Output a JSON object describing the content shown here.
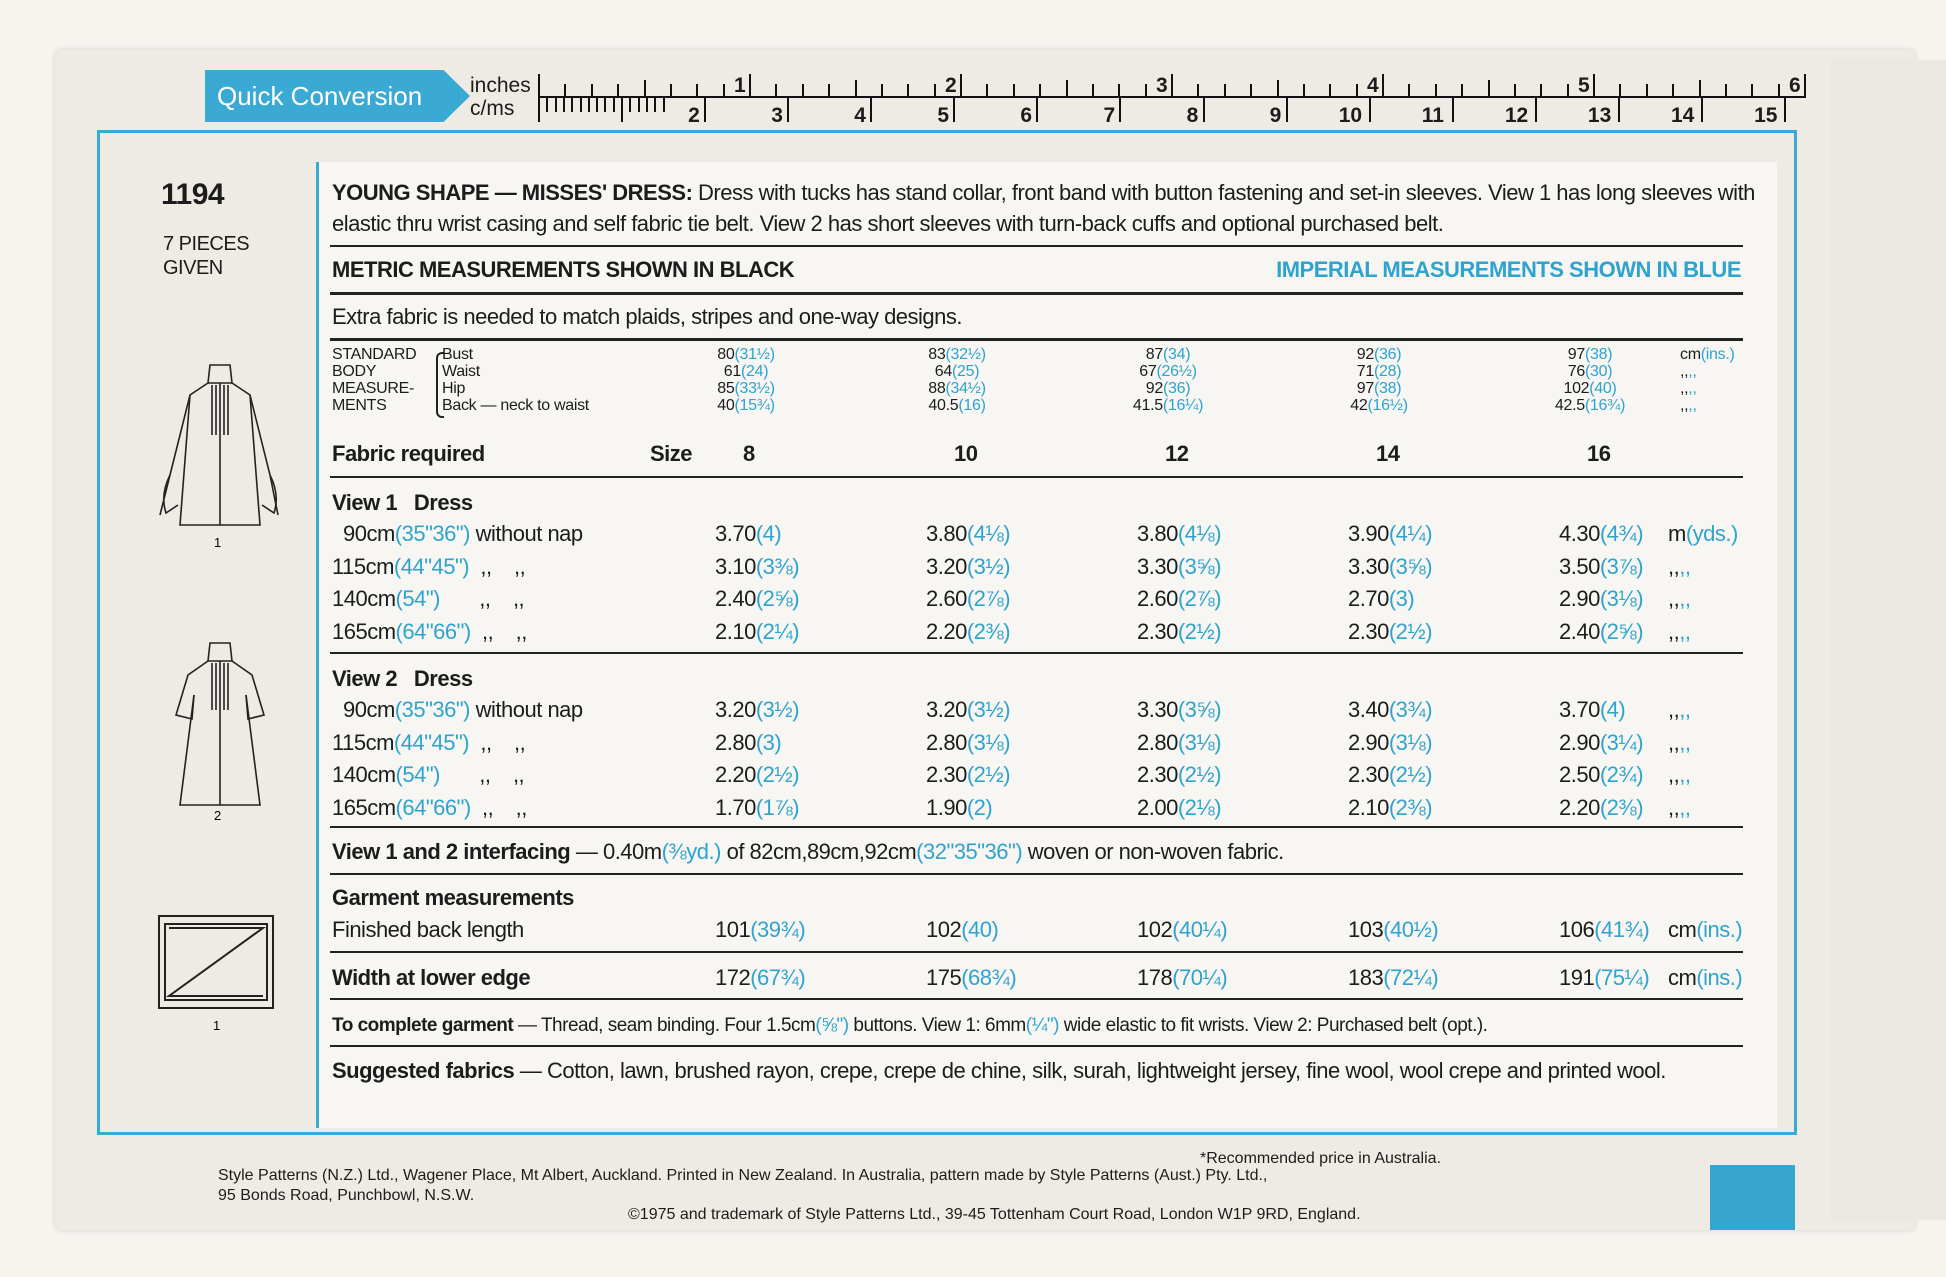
{
  "colors": {
    "accent_blue": "#3aa9d3",
    "text_blue": "#2ea3cf",
    "text_black": "#1c1c1c"
  },
  "ruler": {
    "tab_label": "Quick Conversion",
    "inches_label": "inches",
    "cm_label": "c/ms",
    "inch_marks": [
      "1",
      "2",
      "3",
      "4",
      "5",
      "6"
    ],
    "cm_marks": [
      "2",
      "3",
      "4",
      "5",
      "6",
      "7",
      "8",
      "9",
      "10",
      "11",
      "12",
      "13",
      "14",
      "15"
    ]
  },
  "left": {
    "pattern_number": "1194",
    "pieces_line1": "7 PIECES",
    "pieces_line2": "GIVEN",
    "view1_label": "1",
    "view2_label": "2",
    "piece_label": "1"
  },
  "header": {
    "title": "YOUNG SHAPE — MISSES' DRESS:",
    "description_line1": "Dress with tucks has stand collar, front band with button fastening and set-in sleeves. View 1 has long sleeves with",
    "description_line2": "elastic thru wrist casing and self fabric tie belt. View 2 has short sleeves with turn-back cuffs and optional purchased belt.",
    "metric_note": "METRIC MEASUREMENTS SHOWN IN BLACK",
    "imperial_note": "IMPERIAL MEASUREMENTS SHOWN IN BLUE",
    "extra_fabric": "Extra fabric is needed to match plaids, stripes and one-way designs."
  },
  "body_measurements": {
    "labels": [
      "STANDARD",
      "BODY",
      "MEASURE-",
      "MENTS"
    ],
    "rows": [
      {
        "name": "Bust",
        "values": [
          [
            "80",
            "(31½)"
          ],
          [
            "83",
            "(32½)"
          ],
          [
            "87",
            "(34)"
          ],
          [
            "92",
            "(36)"
          ],
          [
            "97",
            "(38)"
          ]
        ],
        "unit": [
          "cm",
          "(ins.)"
        ]
      },
      {
        "name": "Waist",
        "values": [
          [
            "61",
            "(24)"
          ],
          [
            "64",
            "(25)"
          ],
          [
            "67",
            "(26½)"
          ],
          [
            "71",
            "(28)"
          ],
          [
            "76",
            "(30)"
          ]
        ],
        "unit": [
          ",,",
          ",,"
        ]
      },
      {
        "name": "Hip",
        "values": [
          [
            "85",
            "(33½)"
          ],
          [
            "88",
            "(34½)"
          ],
          [
            "92",
            "(36)"
          ],
          [
            "97",
            "(38)"
          ],
          [
            "102",
            "(40)"
          ]
        ],
        "unit": [
          ",,",
          ",,"
        ]
      },
      {
        "name": "Back — neck to waist",
        "values": [
          [
            "40",
            "(15¾)"
          ],
          [
            "40.5",
            "(16)"
          ],
          [
            "41.5",
            "(16¼)"
          ],
          [
            "42",
            "(16½)"
          ],
          [
            "42.5",
            "(16¾)"
          ]
        ],
        "unit": [
          ",,",
          ",,"
        ]
      }
    ]
  },
  "fabric": {
    "heading": "Fabric required",
    "size_label": "Size",
    "sizes": [
      "8",
      "10",
      "12",
      "14",
      "16"
    ],
    "views": [
      {
        "title": "View 1   Dress",
        "rows": [
          {
            "width": [
              "90cm",
              "(35\"36\")",
              " without nap"
            ],
            "values": [
              [
                "3.70",
                "(4)"
              ],
              [
                "3.80",
                "(4⅛)"
              ],
              [
                "3.80",
                "(4⅛)"
              ],
              [
                "3.90",
                "(4¼)"
              ],
              [
                "4.30",
                "(4¾)"
              ]
            ],
            "unit": [
              "m",
              "(yds.)"
            ]
          },
          {
            "width": [
              "115cm",
              "(44\"45\")",
              "  ,,    ,,"
            ],
            "values": [
              [
                "3.10",
                "(3⅜)"
              ],
              [
                "3.20",
                "(3½)"
              ],
              [
                "3.30",
                "(3⅝)"
              ],
              [
                "3.30",
                "(3⅝)"
              ],
              [
                "3.50",
                "(3⅞)"
              ]
            ],
            "unit": [
              ",,",
              ",,"
            ]
          },
          {
            "width": [
              "140cm",
              "(54\")",
              "       ,,    ,,"
            ],
            "values": [
              [
                "2.40",
                "(2⅝)"
              ],
              [
                "2.60",
                "(2⅞)"
              ],
              [
                "2.60",
                "(2⅞)"
              ],
              [
                "2.70",
                "(3)"
              ],
              [
                "2.90",
                "(3⅛)"
              ]
            ],
            "unit": [
              ",,",
              ",,"
            ]
          },
          {
            "width": [
              "165cm",
              "(64\"66\")",
              "  ,,    ,,"
            ],
            "values": [
              [
                "2.10",
                "(2¼)"
              ],
              [
                "2.20",
                "(2⅜)"
              ],
              [
                "2.30",
                "(2½)"
              ],
              [
                "2.30",
                "(2½)"
              ],
              [
                "2.40",
                "(2⅝)"
              ]
            ],
            "unit": [
              ",,",
              ",,"
            ]
          }
        ]
      },
      {
        "title": "View 2   Dress",
        "rows": [
          {
            "width": [
              "90cm",
              "(35\"36\")",
              " without nap"
            ],
            "values": [
              [
                "3.20",
                "(3½)"
              ],
              [
                "3.20",
                "(3½)"
              ],
              [
                "3.30",
                "(3⅝)"
              ],
              [
                "3.40",
                "(3¾)"
              ],
              [
                "3.70",
                "(4)"
              ]
            ],
            "unit": [
              ",,",
              ",,"
            ]
          },
          {
            "width": [
              "115cm",
              "(44\"45\")",
              "  ,,    ,,"
            ],
            "values": [
              [
                "2.80",
                "(3)"
              ],
              [
                "2.80",
                "(3⅛)"
              ],
              [
                "2.80",
                "(3⅛)"
              ],
              [
                "2.90",
                "(3⅛)"
              ],
              [
                "2.90",
                "(3¼)"
              ]
            ],
            "unit": [
              ",,",
              ",,"
            ]
          },
          {
            "width": [
              "140cm",
              "(54\")",
              "       ,,    ,,"
            ],
            "values": [
              [
                "2.20",
                "(2½)"
              ],
              [
                "2.30",
                "(2½)"
              ],
              [
                "2.30",
                "(2½)"
              ],
              [
                "2.30",
                "(2½)"
              ],
              [
                "2.50",
                "(2¾)"
              ]
            ],
            "unit": [
              ",,",
              ",,"
            ]
          },
          {
            "width": [
              "165cm",
              "(64\"66\")",
              "  ,,    ,,"
            ],
            "values": [
              [
                "1.70",
                "(1⅞)"
              ],
              [
                "1.90",
                "(2)"
              ],
              [
                "2.00",
                "(2⅛)"
              ],
              [
                "2.10",
                "(2⅜)"
              ],
              [
                "2.20",
                "(2⅜)"
              ]
            ],
            "unit": [
              ",,",
              ",,"
            ]
          }
        ]
      }
    ]
  },
  "interfacing": {
    "label": "View 1 and 2 interfacing",
    "p1": " — 0.40m",
    "p2": "(⅜yd.)",
    "p3": " of 82cm,89cm,92cm",
    "p4": "(32\"35\"36\")",
    "p5": " woven or non-woven fabric."
  },
  "garment": {
    "heading": "Garment measurements",
    "rows": [
      {
        "label": "Finished back length",
        "bold": false,
        "values": [
          [
            "101",
            "(39¾)"
          ],
          [
            "102",
            "(40)"
          ],
          [
            "102",
            "(40¼)"
          ],
          [
            "103",
            "(40½)"
          ],
          [
            "106",
            "(41¾)"
          ]
        ],
        "unit": [
          "cm",
          "(ins.)"
        ]
      },
      {
        "label": "Width at lower edge",
        "bold": true,
        "values": [
          [
            "172",
            "(67¾)"
          ],
          [
            "175",
            "(68¾)"
          ],
          [
            "178",
            "(70¼)"
          ],
          [
            "183",
            "(72¼)"
          ],
          [
            "191",
            "(75¼)"
          ]
        ],
        "unit": [
          "cm",
          "(ins.)"
        ]
      }
    ]
  },
  "notions": {
    "label": "To complete garment",
    "p1": " — Thread, seam binding. Four 1.5cm",
    "p2": "(⅝\")",
    "p3": " buttons. View 1: 6mm",
    "p4": "(¼\")",
    "p5": " wide elastic to fit wrists. View 2: Purchased belt (opt.)."
  },
  "suggested": {
    "label": "Suggested fabrics",
    "text": " — Cotton, lawn, brushed rayon, crepe, crepe de chine, silk, surah, lightweight jersey, fine wool, wool crepe and printed wool."
  },
  "footer": {
    "line1": "Style Patterns (N.Z.) Ltd., Wagener Place, Mt Albert, Auckland. Printed in New Zealand. In Australia, pattern made by Style Patterns (Aust.) Pty. Ltd.,",
    "line2": "95 Bonds Road, Punchbowl, N.S.W.",
    "line3": "©1975 and trademark of Style Patterns Ltd., 39-45 Tottenham Court Road, London W1P 9RD, England.",
    "price_note": "*Recommended price in Australia."
  }
}
